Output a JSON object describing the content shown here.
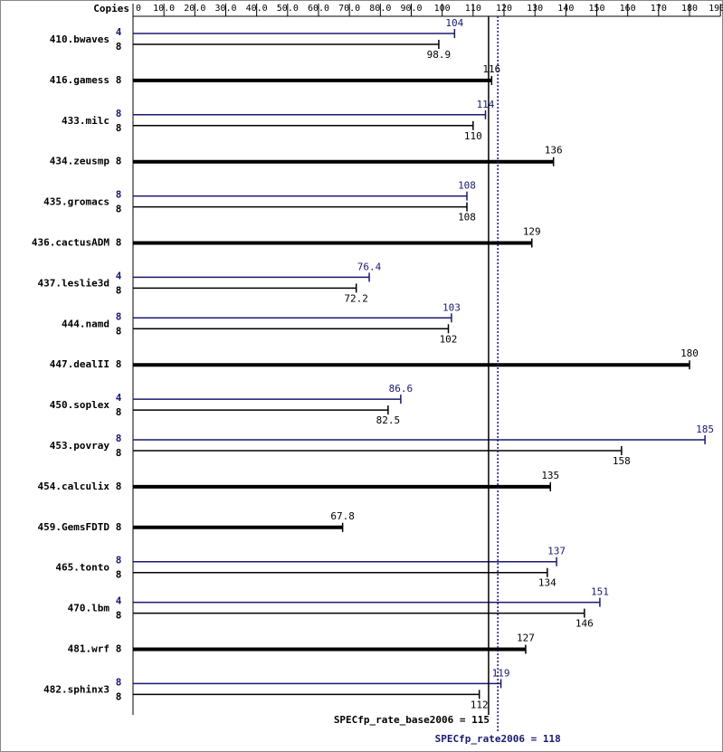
{
  "chart_data": {
    "type": "spec-bar",
    "copies_label": "Copies",
    "xlim": [
      0,
      190
    ],
    "xticks": [
      0,
      {
        "value": 10,
        "label": "10.0"
      },
      {
        "value": 20,
        "label": "20.0"
      },
      {
        "value": 30,
        "label": "30.0"
      },
      {
        "value": 40,
        "label": "40.0"
      },
      {
        "value": 50,
        "label": "50.0"
      },
      {
        "value": 60,
        "label": "60.0"
      },
      {
        "value": 70,
        "label": "70.0"
      },
      {
        "value": 80,
        "label": "80.0"
      },
      {
        "value": 90,
        "label": "90.0"
      },
      100,
      110,
      120,
      130,
      140,
      150,
      160,
      170,
      180,
      190
    ],
    "base_color": "#000000",
    "peak_color": "#191970",
    "benchmarks": [
      {
        "name": "410.bwaves",
        "peak_copies": 4,
        "peak": 104,
        "base_copies": 8,
        "base": 98.9
      },
      {
        "name": "416.gamess",
        "base_copies": 8,
        "base": 116
      },
      {
        "name": "433.milc",
        "peak_copies": 8,
        "peak": 114,
        "base_copies": 8,
        "base": 110
      },
      {
        "name": "434.zeusmp",
        "base_copies": 8,
        "base": 136
      },
      {
        "name": "435.gromacs",
        "peak_copies": 8,
        "peak": 108,
        "base_copies": 8,
        "base": 108
      },
      {
        "name": "436.cactusADM",
        "base_copies": 8,
        "base": 129
      },
      {
        "name": "437.leslie3d",
        "peak_copies": 4,
        "peak": 76.4,
        "base_copies": 8,
        "base": 72.2
      },
      {
        "name": "444.namd",
        "peak_copies": 8,
        "peak": 103,
        "base_copies": 8,
        "base": 102
      },
      {
        "name": "447.dealII",
        "base_copies": 8,
        "base": 180
      },
      {
        "name": "450.soplex",
        "peak_copies": 4,
        "peak": 86.6,
        "base_copies": 8,
        "base": 82.5
      },
      {
        "name": "453.povray",
        "peak_copies": 8,
        "peak": 185,
        "base_copies": 8,
        "base": 158
      },
      {
        "name": "454.calculix",
        "base_copies": 8,
        "base": 135
      },
      {
        "name": "459.GemsFDTD",
        "base_copies": 8,
        "base": 67.8
      },
      {
        "name": "465.tonto",
        "peak_copies": 8,
        "peak": 137,
        "base_copies": 8,
        "base": 134
      },
      {
        "name": "470.lbm",
        "peak_copies": 4,
        "peak": 151,
        "base_copies": 8,
        "base": 146
      },
      {
        "name": "481.wrf",
        "base_copies": 8,
        "base": 127
      },
      {
        "name": "482.sphinx3",
        "peak_copies": 8,
        "peak": 119,
        "base_copies": 8,
        "base": 112
      }
    ],
    "base_metric": {
      "label": "SPECfp_rate_base2006 =",
      "value": 115
    },
    "peak_metric": {
      "label": "SPECfp_rate2006 =",
      "value": 118
    }
  }
}
